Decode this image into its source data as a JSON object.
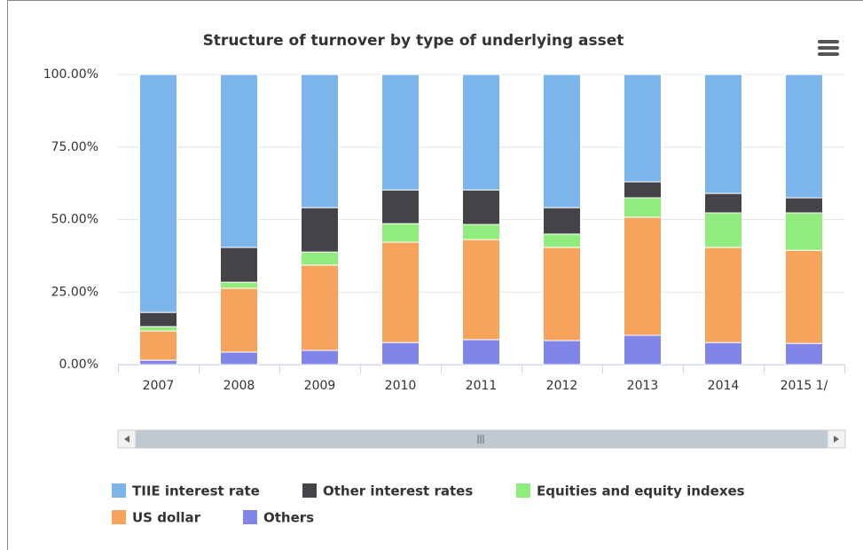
{
  "chart_data": {
    "type": "stacked_bar",
    "title": "Structure of turnover by type of underlying asset",
    "categories": [
      "2007",
      "2008",
      "2009",
      "2010",
      "2011",
      "2012",
      "2013",
      "2014",
      "2015 1/"
    ],
    "series": [
      {
        "name": "TIIE interest rate",
        "color": "#7cb5ec",
        "values": [
          82,
          59.6,
          45.9,
          39.8,
          39.8,
          45.9,
          37,
          41,
          42.5
        ]
      },
      {
        "name": "Other interest rates",
        "color": "#434348",
        "values": [
          4.9,
          12,
          15.3,
          11.6,
          11.9,
          9.1,
          5.5,
          6.7,
          5.2
        ]
      },
      {
        "name": "Equities and equity indexes",
        "color": "#90ed7d",
        "values": [
          1.5,
          2.1,
          4.5,
          6.4,
          5.2,
          4.6,
          6.7,
          11.9,
          12.9
        ]
      },
      {
        "name": "US dollar",
        "color": "#f7a35c",
        "values": [
          10.1,
          22,
          29.4,
          34.6,
          34.5,
          32.1,
          40.7,
          32.8,
          32.1
        ]
      },
      {
        "name": "Others",
        "color": "#8085e9",
        "values": [
          1.5,
          4.3,
          4.9,
          7.6,
          8.6,
          8.3,
          10.1,
          7.6,
          7.3
        ]
      }
    ],
    "ylim": [
      0,
      100
    ],
    "yticks": [
      {
        "value": 0,
        "label": "0.00%"
      },
      {
        "value": 25,
        "label": "25.00%"
      },
      {
        "value": 50,
        "label": "50.00%"
      },
      {
        "value": 75,
        "label": "75.00%"
      },
      {
        "value": 100,
        "label": "100.00%"
      }
    ],
    "grid": true
  }
}
